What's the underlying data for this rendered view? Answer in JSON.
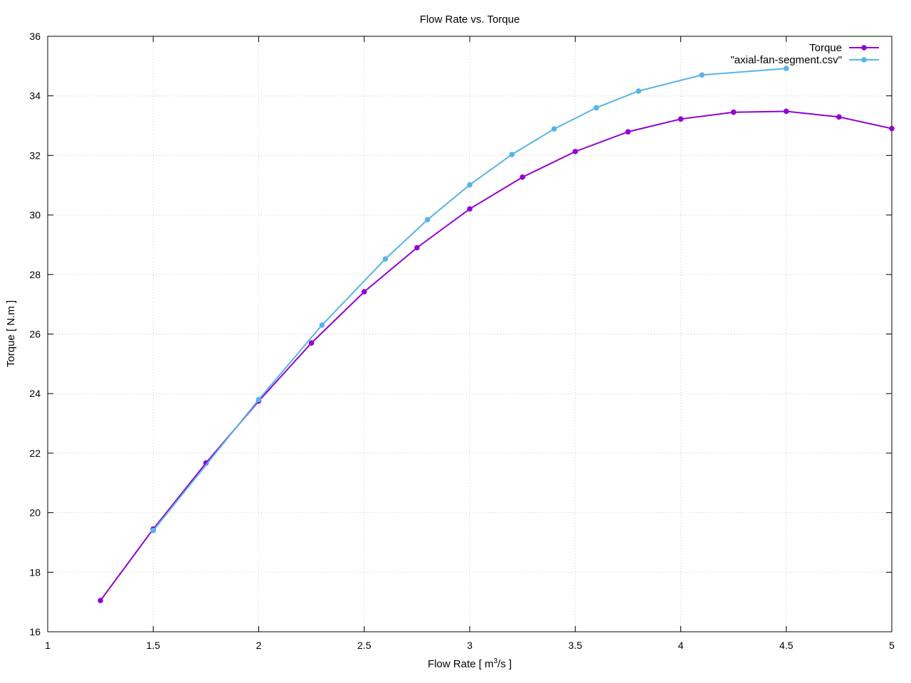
{
  "chart_data": {
    "type": "line",
    "title": "Flow Rate vs. Torque",
    "xlabel": "Flow Rate [ m",
    "xlabel_sup": "3",
    "xlabel_suffix": "/s ]",
    "ylabel": "Torque [ N.m ]",
    "xlim": [
      1,
      5
    ],
    "ylim": [
      16,
      36
    ],
    "xticks": [
      1,
      1.5,
      2,
      2.5,
      3,
      3.5,
      4,
      4.5,
      5
    ],
    "xtick_labels": [
      "1",
      "1.5",
      "2",
      "2.5",
      "3",
      "3.5",
      "4",
      "4.5",
      "5"
    ],
    "yticks": [
      16,
      18,
      20,
      22,
      24,
      26,
      28,
      30,
      32,
      34,
      36
    ],
    "ytick_labels": [
      "16",
      "18",
      "20",
      "22",
      "24",
      "26",
      "28",
      "30",
      "32",
      "34",
      "36"
    ],
    "grid": true,
    "legend_position": "top-right",
    "series": [
      {
        "name": "Torque",
        "color": "#9400d3",
        "x": [
          1.25,
          1.5,
          1.75,
          2.0,
          2.25,
          2.5,
          2.75,
          3.0,
          3.25,
          3.5,
          3.75,
          4.0,
          4.25,
          4.5,
          4.75,
          5.0
        ],
        "y": [
          17.05,
          19.45,
          21.67,
          23.75,
          25.7,
          27.42,
          28.9,
          30.2,
          31.27,
          32.13,
          32.79,
          33.22,
          33.45,
          33.48,
          33.29,
          32.9
        ]
      },
      {
        "name": "\"axial-fan-segment.csv\"",
        "color": "#56b4e9",
        "x": [
          1.5,
          2.0,
          2.3,
          2.6,
          2.8,
          3.0,
          3.2,
          3.4,
          3.6,
          3.8,
          4.1,
          4.5
        ],
        "y": [
          19.4,
          23.8,
          26.3,
          28.52,
          29.84,
          31.01,
          32.03,
          32.89,
          33.6,
          34.16,
          34.7,
          34.92
        ]
      }
    ]
  }
}
